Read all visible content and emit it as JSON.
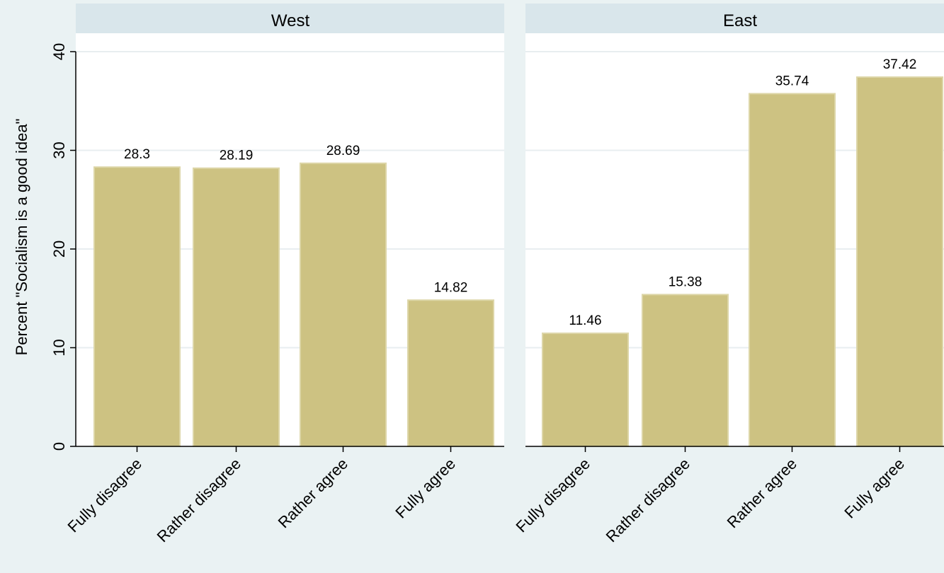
{
  "chart_data": {
    "type": "bar",
    "ylabel": "Percent \"Socialism is a good idea\"",
    "ylim": [
      0,
      40
    ],
    "yticks": [
      0,
      10,
      20,
      30,
      40
    ],
    "categories": [
      "Fully disagree",
      "Rather disagree",
      "Rather agree",
      "Fully agree"
    ],
    "grid": true,
    "bar_color": "#cdc282",
    "bar_edge_color": "#ddd6a8",
    "panel_header_color": "#d9e6eb",
    "panels": [
      {
        "title": "West",
        "values": [
          28.3,
          28.19,
          28.69,
          14.82
        ]
      },
      {
        "title": "East",
        "values": [
          11.46,
          15.38,
          35.74,
          37.42
        ]
      }
    ]
  }
}
